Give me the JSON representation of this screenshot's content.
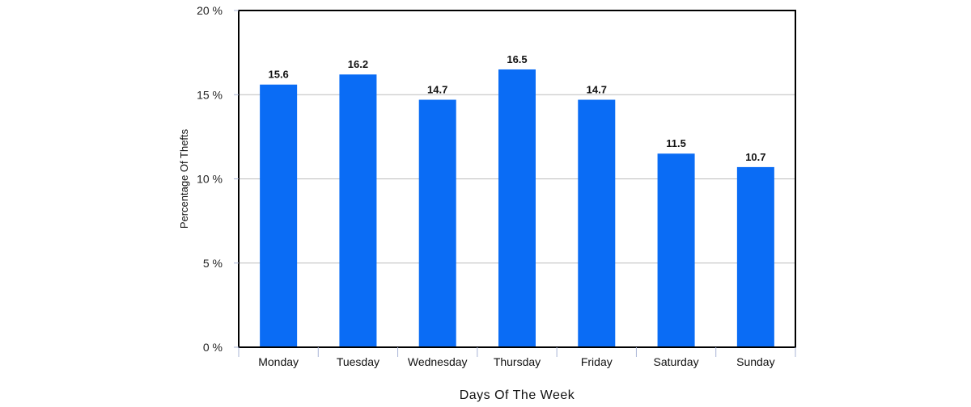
{
  "chart_data": {
    "type": "bar",
    "categories": [
      "Monday",
      "Tuesday",
      "Wednesday",
      "Thursday",
      "Friday",
      "Saturday",
      "Sunday"
    ],
    "values": [
      15.6,
      16.2,
      14.7,
      16.5,
      14.7,
      11.5,
      10.7
    ],
    "value_labels": [
      "15.6",
      "16.2",
      "14.7",
      "16.5",
      "14.7",
      "11.5",
      "10.7"
    ],
    "title": "",
    "xlabel": "Days Of The Week",
    "ylabel": "Percentage Of Thefts",
    "ylim": [
      0,
      20
    ],
    "yticks": [
      0,
      5,
      10,
      15,
      20
    ],
    "ytick_labels": [
      "0 %",
      "5 %",
      "10 %",
      "15 %",
      "20 %"
    ],
    "grid": true,
    "legend": "none",
    "colors": {
      "bar": "#0a6cf5",
      "grid": "#bdbdbd",
      "frame": "#000000",
      "tick": "#a9b4d6"
    }
  }
}
